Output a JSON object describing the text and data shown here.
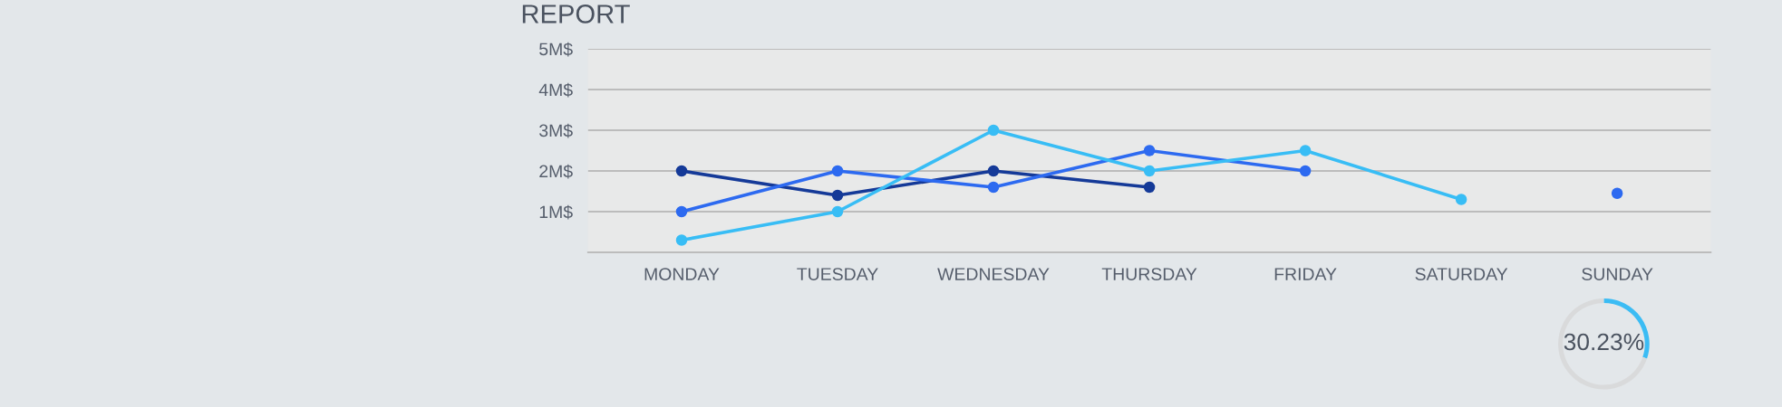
{
  "chart_data": [
    {
      "type": "line",
      "title": "REPORT",
      "categories": [
        "MONDAY",
        "TUESDAY",
        "WEDNESDAY",
        "THURSDAY",
        "FRIDAY",
        "SATURDAY",
        "SUNDAY"
      ],
      "series": [
        {
          "color": "#153a98",
          "values": [
            2.0,
            1.4,
            2.0,
            1.6,
            null,
            null,
            null
          ]
        },
        {
          "color": "#2d6af0",
          "values": [
            1.0,
            2.0,
            1.6,
            2.5,
            2.0,
            null,
            1.45
          ]
        },
        {
          "color": "#38bdf5",
          "values": [
            0.3,
            1.0,
            3.0,
            2.0,
            2.5,
            1.3,
            null
          ]
        }
      ],
      "ylim": [
        0,
        5
      ],
      "yticks": [
        {
          "value": 0,
          "label": null
        },
        {
          "value": 1,
          "label": "1M$"
        },
        {
          "value": 2,
          "label": "2M$"
        },
        {
          "value": 3,
          "label": "3M$"
        },
        {
          "value": 4,
          "label": "4M$"
        },
        {
          "value": 5,
          "label": "5M$"
        }
      ],
      "grid": "y",
      "marker": "circle",
      "line_style": "solid"
    },
    {
      "type": "donut",
      "categories": [
        null,
        null
      ],
      "values": [
        30.23,
        69.77
      ],
      "colors": [
        "#3bbcf4",
        "#d9dadb"
      ],
      "value_labels": [
        "30.23%",
        null
      ]
    }
  ]
}
